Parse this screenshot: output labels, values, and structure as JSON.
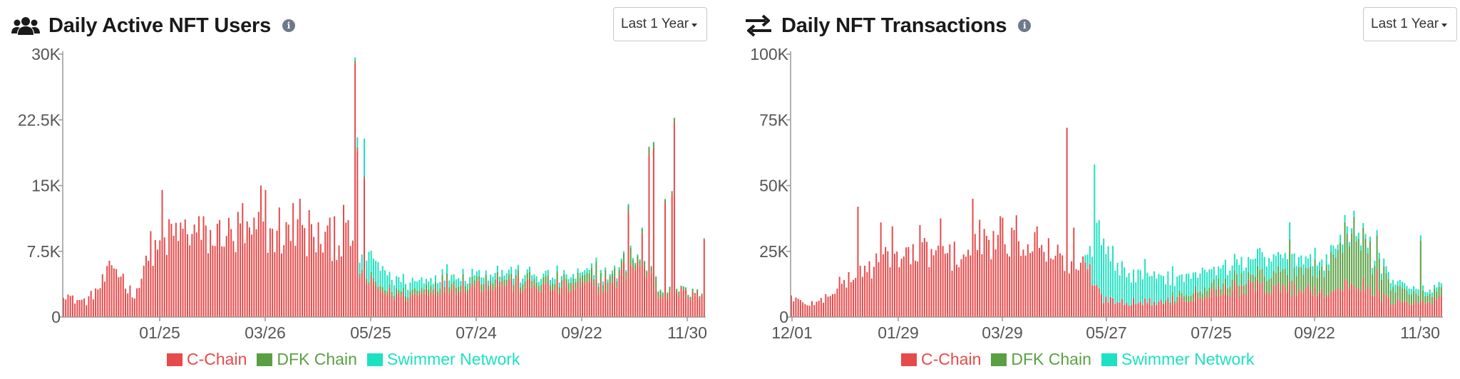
{
  "colors": {
    "c_chain": "#e64a4a",
    "dfk_chain": "#5aa043",
    "swimmer_network": "#1de1c1",
    "axis": "#999999"
  },
  "panels": {
    "users": {
      "title": "Daily Active NFT Users",
      "icon": "users-icon",
      "range_label": "Last 1 Year"
    },
    "tx": {
      "title": "Daily NFT Transactions",
      "icon": "transfer-arrows-icon",
      "range_label": "Last 1 Year"
    }
  },
  "legend": {
    "c_chain": "C-Chain",
    "dfk_chain": "DFK Chain",
    "swimmer_network": "Swimmer Network"
  },
  "chart_data": [
    {
      "type": "bar",
      "stacked": true,
      "title": "Daily Active NFT Users",
      "ylim": [
        0,
        30000
      ],
      "y_ticks": [
        "0",
        "7.5K",
        "15K",
        "22.5K",
        "30K"
      ],
      "x_ticks": [
        "01/25",
        "03/26",
        "05/25",
        "07/24",
        "09/22",
        "11/30"
      ],
      "grid": false,
      "legend_position": "bottom",
      "series": [
        {
          "name": "C-Chain",
          "keypoints": [
            [
              0,
              3000
            ],
            [
              4,
              2000
            ],
            [
              10,
              1800
            ],
            [
              16,
              3500
            ],
            [
              22,
              5800
            ],
            [
              26,
              4500
            ],
            [
              30,
              2500
            ],
            [
              34,
              4200
            ],
            [
              38,
              6000
            ],
            [
              42,
              8000
            ],
            [
              48,
              9500
            ],
            [
              55,
              9800
            ],
            [
              62,
              9200
            ],
            [
              66,
              8800
            ],
            [
              70,
              10200
            ],
            [
              74,
              8500
            ],
            [
              80,
              9200
            ],
            [
              90,
              9500
            ],
            [
              100,
              9300
            ],
            [
              110,
              8800
            ],
            [
              120,
              8900
            ],
            [
              124,
              8700
            ],
            [
              126,
              9500
            ],
            [
              128,
              6500
            ],
            [
              130,
              4500
            ],
            [
              135,
              3500
            ],
            [
              140,
              2800
            ],
            [
              145,
              2500
            ],
            [
              150,
              2300
            ],
            [
              155,
              2600
            ],
            [
              160,
              3200
            ],
            [
              170,
              3500
            ],
            [
              180,
              3700
            ],
            [
              190,
              4000
            ],
            [
              200,
              3600
            ],
            [
              210,
              3400
            ],
            [
              220,
              3300
            ],
            [
              230,
              3600
            ],
            [
              240,
              3800
            ],
            [
              245,
              5500
            ],
            [
              250,
              6000
            ],
            [
              255,
              5000
            ],
            [
              258,
              2800
            ],
            [
              262,
              2200
            ],
            [
              265,
              4200
            ],
            [
              268,
              2800
            ],
            [
              272,
              2500
            ],
            [
              276,
              2300
            ],
            [
              279,
              3500
            ]
          ],
          "spikes": [
            [
              36,
              7000
            ],
            [
              38,
              9800
            ],
            [
              43,
              14500
            ],
            [
              59,
              11500
            ],
            [
              76,
              12000
            ],
            [
              78,
              13000
            ],
            [
              85,
              12000
            ],
            [
              86,
              15000
            ],
            [
              88,
              14500
            ],
            [
              94,
              12500
            ],
            [
              100,
              13000
            ],
            [
              103,
              13500
            ],
            [
              107,
              12200
            ],
            [
              118,
              11500
            ],
            [
              122,
              12800
            ],
            [
              127,
              29000
            ],
            [
              128,
              19000
            ],
            [
              131,
              15800
            ],
            [
              246,
              12000
            ],
            [
              252,
              9500
            ],
            [
              255,
              18500
            ],
            [
              257,
              19300
            ],
            [
              262,
              13000
            ],
            [
              265,
              14000
            ],
            [
              266,
              22200
            ],
            [
              279,
              8800
            ]
          ]
        },
        {
          "name": "DFK Chain",
          "keypoints": [
            [
              0,
              0
            ],
            [
              125,
              0
            ],
            [
              128,
              300
            ],
            [
              135,
              400
            ],
            [
              160,
              600
            ],
            [
              200,
              700
            ],
            [
              230,
              900
            ],
            [
              240,
              900
            ],
            [
              250,
              800
            ],
            [
              262,
              500
            ],
            [
              270,
              300
            ],
            [
              279,
              200
            ]
          ],
          "spikes": [
            [
              232,
              2000
            ],
            [
              247,
              2000
            ],
            [
              258,
              1400
            ]
          ]
        },
        {
          "name": "Swimmer Network",
          "keypoints": [
            [
              0,
              0
            ],
            [
              126,
              0
            ],
            [
              130,
              2000
            ],
            [
              135,
              2500
            ],
            [
              140,
              1800
            ],
            [
              145,
              1500
            ],
            [
              150,
              1200
            ],
            [
              158,
              900
            ],
            [
              170,
              800
            ],
            [
              180,
              700
            ],
            [
              200,
              600
            ],
            [
              220,
              500
            ],
            [
              240,
              300
            ],
            [
              255,
              100
            ],
            [
              279,
              0
            ]
          ],
          "spikes": [
            [
              131,
              4300
            ],
            [
              133,
              3500
            ]
          ]
        }
      ]
    },
    {
      "type": "bar",
      "stacked": true,
      "title": "Daily NFT Transactions",
      "ylim": [
        0,
        100000
      ],
      "y_ticks": [
        "0",
        "25K",
        "50K",
        "75K",
        "100K"
      ],
      "x_ticks": [
        "12/01",
        "01/29",
        "03/29",
        "05/27",
        "07/25",
        "09/22",
        "11/30"
      ],
      "grid": false,
      "legend_position": "bottom",
      "series": [
        {
          "name": "C-Chain",
          "keypoints": [
            [
              0,
              8000
            ],
            [
              5,
              5000
            ],
            [
              12,
              5500
            ],
            [
              18,
              10000
            ],
            [
              24,
              14000
            ],
            [
              30,
              17000
            ],
            [
              36,
              20000
            ],
            [
              44,
              22000
            ],
            [
              52,
              23500
            ],
            [
              60,
              25000
            ],
            [
              70,
              23000
            ],
            [
              80,
              25500
            ],
            [
              90,
              30000
            ],
            [
              100,
              30500
            ],
            [
              110,
              28000
            ],
            [
              115,
              24000
            ],
            [
              120,
              20000
            ],
            [
              125,
              19000
            ],
            [
              130,
              18000
            ],
            [
              133,
              10000
            ],
            [
              136,
              7000
            ],
            [
              145,
              6000
            ],
            [
              160,
              5500
            ],
            [
              175,
              8000
            ],
            [
              185,
              10000
            ],
            [
              195,
              11000
            ],
            [
              205,
              11500
            ],
            [
              215,
              11000
            ],
            [
              225,
              10500
            ],
            [
              235,
              10000
            ],
            [
              245,
              12000
            ],
            [
              250,
              13000
            ],
            [
              255,
              9000
            ],
            [
              260,
              6000
            ],
            [
              270,
              5000
            ],
            [
              278,
              5500
            ],
            [
              283,
              7000
            ]
          ],
          "spikes": [
            [
              29,
              42000
            ],
            [
              39,
              36000
            ],
            [
              44,
              34500
            ],
            [
              56,
              35000
            ],
            [
              65,
              37500
            ],
            [
              79,
              45000
            ],
            [
              82,
              37000
            ],
            [
              96,
              34000
            ],
            [
              112,
              30000
            ],
            [
              120,
              72000
            ],
            [
              123,
              34000
            ],
            [
              255,
              18000
            ]
          ]
        },
        {
          "name": "DFK Chain",
          "keypoints": [
            [
              0,
              0
            ],
            [
              160,
              0
            ],
            [
              170,
              2000
            ],
            [
              185,
              3000
            ],
            [
              200,
              4000
            ],
            [
              215,
              6500
            ],
            [
              225,
              8000
            ],
            [
              232,
              10000
            ],
            [
              240,
              18000
            ],
            [
              245,
              20000
            ],
            [
              250,
              18000
            ],
            [
              255,
              12000
            ],
            [
              260,
              6000
            ],
            [
              270,
              4000
            ],
            [
              278,
              3000
            ],
            [
              283,
              3000
            ]
          ],
          "spikes": [
            [
              217,
              16000
            ],
            [
              236,
              14000
            ],
            [
              245,
              26000
            ],
            [
              253,
              8000
            ],
            [
              274,
              23000
            ]
          ]
        },
        {
          "name": "Swimmer Network",
          "keypoints": [
            [
              0,
              0
            ],
            [
              127,
              0
            ],
            [
              130,
              8000
            ],
            [
              133,
              25000
            ],
            [
              136,
              20000
            ],
            [
              140,
              15000
            ],
            [
              145,
              12000
            ],
            [
              152,
              10000
            ],
            [
              160,
              9000
            ],
            [
              170,
              7000
            ],
            [
              180,
              6000
            ],
            [
              190,
              6500
            ],
            [
              200,
              7000
            ],
            [
              210,
              6500
            ],
            [
              220,
              5000
            ],
            [
              230,
              3500
            ],
            [
              240,
              2500
            ],
            [
              250,
              2000
            ],
            [
              260,
              2500
            ],
            [
              270,
              2000
            ],
            [
              283,
              1500
            ]
          ],
          "spikes": [
            [
              132,
              46000
            ],
            [
              134,
              26000
            ],
            [
              140,
              20000
            ],
            [
              154,
              15000
            ],
            [
              179,
              10000
            ],
            [
              195,
              8000
            ],
            [
              218,
              10000
            ]
          ]
        }
      ]
    }
  ]
}
